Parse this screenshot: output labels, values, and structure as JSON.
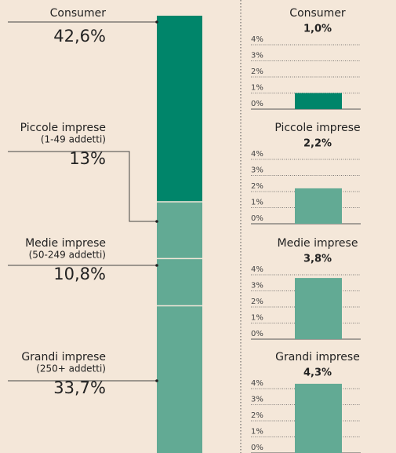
{
  "chart_data": [
    {
      "type": "stacked-bar",
      "categories": [
        "Consumer",
        "Piccole imprese",
        "Medie imprese",
        "Grandi imprese"
      ],
      "category_notes": [
        null,
        "(1-49 addetti)",
        "(50-249 addetti)",
        "(250+ addetti)"
      ],
      "values": [
        42.6,
        13,
        10.8,
        33.7
      ],
      "value_labels": [
        "42,6%",
        "13%",
        "10,8%",
        "33,7%"
      ],
      "colors": [
        "#00856a",
        "#62aa94",
        "#62aa94",
        "#62aa94"
      ]
    },
    {
      "type": "bar",
      "title": "Consumer",
      "values": [
        1.0
      ],
      "value_labels": [
        "1,0%"
      ],
      "color": "#00856a",
      "ylim": [
        0,
        4
      ],
      "yticks": [
        {
          "value": 0,
          "label": "0%"
        },
        {
          "value": 1,
          "label": "1%"
        },
        {
          "value": 2,
          "label": "2%"
        },
        {
          "value": 3,
          "label": "3%"
        },
        {
          "value": 4,
          "label": "4%"
        }
      ],
      "grid": true
    },
    {
      "type": "bar",
      "title": "Piccole imprese",
      "values": [
        2.2
      ],
      "value_labels": [
        "2,2%"
      ],
      "color": "#62aa94",
      "ylim": [
        0,
        4
      ],
      "yticks": [
        {
          "value": 0,
          "label": "0%"
        },
        {
          "value": 1,
          "label": "1%"
        },
        {
          "value": 2,
          "label": "2%"
        },
        {
          "value": 3,
          "label": "3%"
        },
        {
          "value": 4,
          "label": "4%"
        }
      ],
      "grid": true
    },
    {
      "type": "bar",
      "title": "Medie imprese",
      "values": [
        3.8
      ],
      "value_labels": [
        "3,8%"
      ],
      "color": "#62aa94",
      "ylim": [
        0,
        4
      ],
      "yticks": [
        {
          "value": 0,
          "label": "0%"
        },
        {
          "value": 1,
          "label": "1%"
        },
        {
          "value": 2,
          "label": "2%"
        },
        {
          "value": 3,
          "label": "3%"
        },
        {
          "value": 4,
          "label": "4%"
        }
      ],
      "grid": true
    },
    {
      "type": "bar",
      "title": "Grandi imprese",
      "values": [
        4.3
      ],
      "value_labels": [
        "4,3%"
      ],
      "color": "#62aa94",
      "ylim": [
        0,
        4
      ],
      "yticks": [
        {
          "value": 0,
          "label": "0%"
        },
        {
          "value": 1,
          "label": "1%"
        },
        {
          "value": 2,
          "label": "2%"
        },
        {
          "value": 3,
          "label": "3%"
        },
        {
          "value": 4,
          "label": "4%"
        }
      ],
      "grid": true
    }
  ]
}
